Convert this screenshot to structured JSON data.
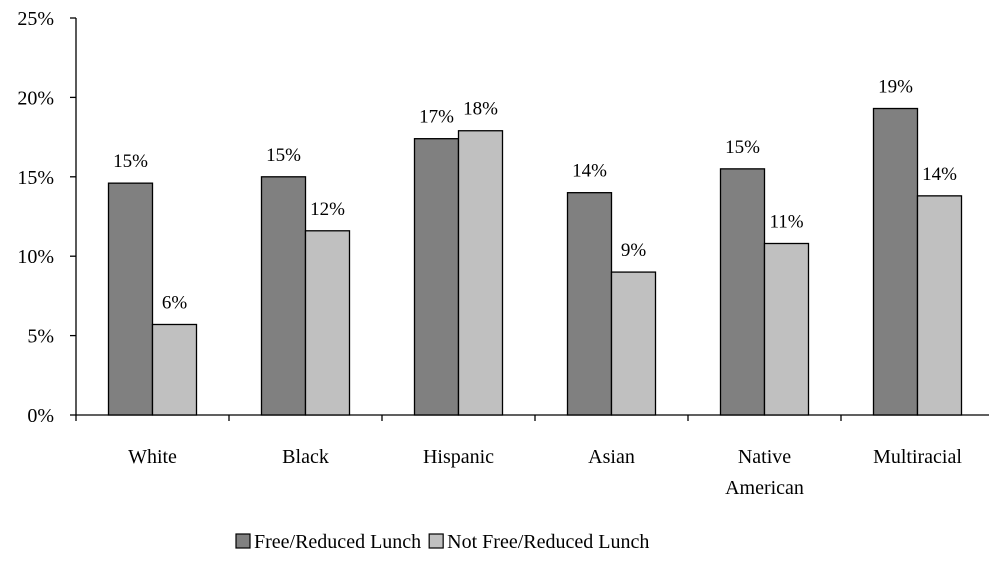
{
  "chart_data": {
    "type": "bar",
    "title": "",
    "xlabel": "",
    "ylabel": "",
    "categories": [
      [
        "White"
      ],
      [
        "Black"
      ],
      [
        "Hispanic"
      ],
      [
        "Asian"
      ],
      [
        "Native",
        "American"
      ],
      [
        "Multiracial"
      ]
    ],
    "series": [
      {
        "name": "Free/Reduced Lunch",
        "color": "#808080",
        "values": [
          14.6,
          15.0,
          17.4,
          14.0,
          15.5,
          19.3
        ],
        "labels": [
          "15%",
          "15%",
          "17%",
          "14%",
          "15%",
          "19%"
        ]
      },
      {
        "name": "Not Free/Reduced Lunch",
        "color": "#c0c0c0",
        "values": [
          5.7,
          11.6,
          17.9,
          9.0,
          10.8,
          13.8
        ],
        "labels": [
          "6%",
          "12%",
          "18%",
          "9%",
          "11%",
          "14%"
        ]
      }
    ],
    "ylim": [
      0,
      25
    ],
    "yticks": [
      0,
      5,
      10,
      15,
      20,
      25
    ],
    "ytick_labels": [
      "0%",
      "5%",
      "10%",
      "15%",
      "20%",
      "25%"
    ],
    "grid": false,
    "legend_position": "bottom"
  }
}
